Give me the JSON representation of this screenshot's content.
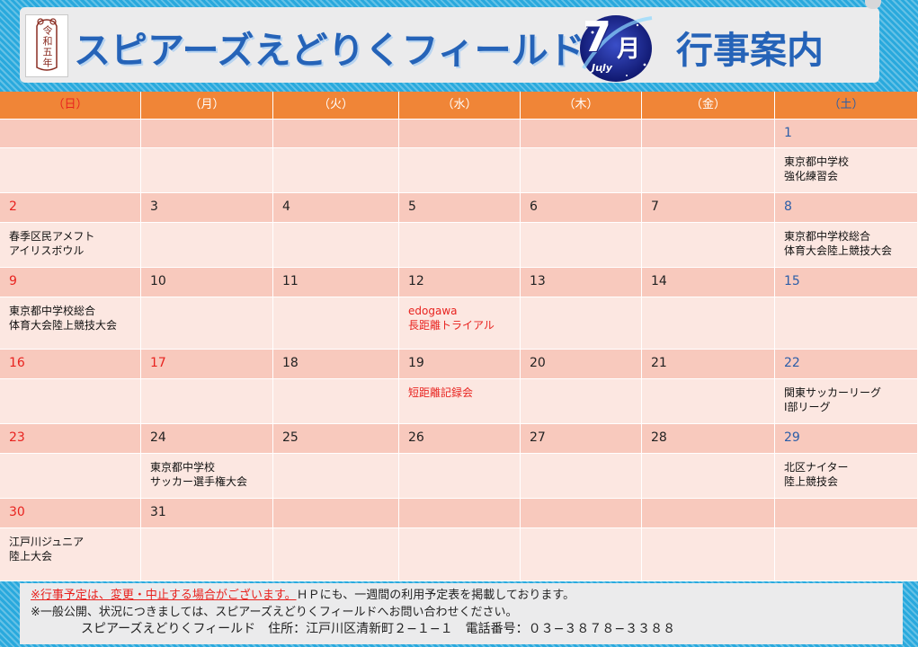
{
  "header": {
    "seal_text": "令和五年",
    "title": "スピアーズえどりくフィールド",
    "month_number": "7",
    "month_kanji": "月",
    "month_english": "July",
    "subtitle": "行事案内"
  },
  "weekdays": [
    "（日）",
    "（月）",
    "（火）",
    "（水）",
    "（木）",
    "（金）",
    "（土）"
  ],
  "weeks": [
    {
      "days": [
        "",
        "",
        "",
        "",
        "",
        "",
        "1"
      ],
      "events": [
        {
          "text": ""
        },
        {
          "text": ""
        },
        {
          "text": ""
        },
        {
          "text": ""
        },
        {
          "text": ""
        },
        {
          "text": ""
        },
        {
          "text": "東京都中学校\n強化練習会"
        }
      ]
    },
    {
      "days": [
        "2",
        "3",
        "4",
        "5",
        "6",
        "7",
        "8"
      ],
      "events": [
        {
          "text": "春季区民アメフト\nアイリスボウル"
        },
        {
          "text": ""
        },
        {
          "text": ""
        },
        {
          "text": ""
        },
        {
          "text": ""
        },
        {
          "text": ""
        },
        {
          "text": "東京都中学校総合\n体育大会陸上競技大会"
        }
      ]
    },
    {
      "days": [
        "9",
        "10",
        "11",
        "12",
        "13",
        "14",
        "15"
      ],
      "events": [
        {
          "text": "東京都中学校総合\n体育大会陸上競技大会"
        },
        {
          "text": ""
        },
        {
          "text": ""
        },
        {
          "text": "edogawa\n長距離トライアル",
          "color": "red"
        },
        {
          "text": ""
        },
        {
          "text": ""
        },
        {
          "text": ""
        }
      ]
    },
    {
      "days": [
        "16",
        "17",
        "18",
        "19",
        "20",
        "21",
        "22"
      ],
      "events": [
        {
          "text": ""
        },
        {
          "text": ""
        },
        {
          "text": ""
        },
        {
          "text": "短距離記録会",
          "color": "red"
        },
        {
          "text": ""
        },
        {
          "text": ""
        },
        {
          "text": "関東サッカーリーグ\nⅠ部リーグ"
        }
      ]
    },
    {
      "days": [
        "23",
        "24",
        "25",
        "26",
        "27",
        "28",
        "29"
      ],
      "events": [
        {
          "text": ""
        },
        {
          "text": "東京都中学校\nサッカー選手権大会"
        },
        {
          "text": ""
        },
        {
          "text": ""
        },
        {
          "text": ""
        },
        {
          "text": ""
        },
        {
          "text": "北区ナイター\n陸上競技会"
        }
      ]
    },
    {
      "days": [
        "30",
        "31",
        "",
        "",
        "",
        "",
        ""
      ],
      "events": [
        {
          "text": "江戸川ジュニア\n陸上大会"
        },
        {
          "text": ""
        },
        {
          "text": ""
        },
        {
          "text": ""
        },
        {
          "text": ""
        },
        {
          "text": ""
        },
        {
          "text": ""
        }
      ]
    }
  ],
  "holiday_days": [
    "17"
  ],
  "footer": {
    "warning": "※行事予定は、変更・中止する場合がございます。",
    "note1": "ＨＰにも、一週間の利用予定表を掲載しております。",
    "note2": "※一般公開、状況につきましては、スピアーズえどりくフィールドへお問い合わせください。",
    "contact": "スピアーズえどりくフィールド　住所：江戸川区清新町２−１−１　電話番号：０３−３８７８−３３８８"
  },
  "colors": {
    "header_bar": "#f08537",
    "number_row": "#f8c9bd",
    "event_row": "#fce7e1",
    "sunday_red": "#e8231f",
    "saturday_blue": "#2c5ea8",
    "title_blue": "#2563b8",
    "frame_blue": "#29a9dd"
  }
}
